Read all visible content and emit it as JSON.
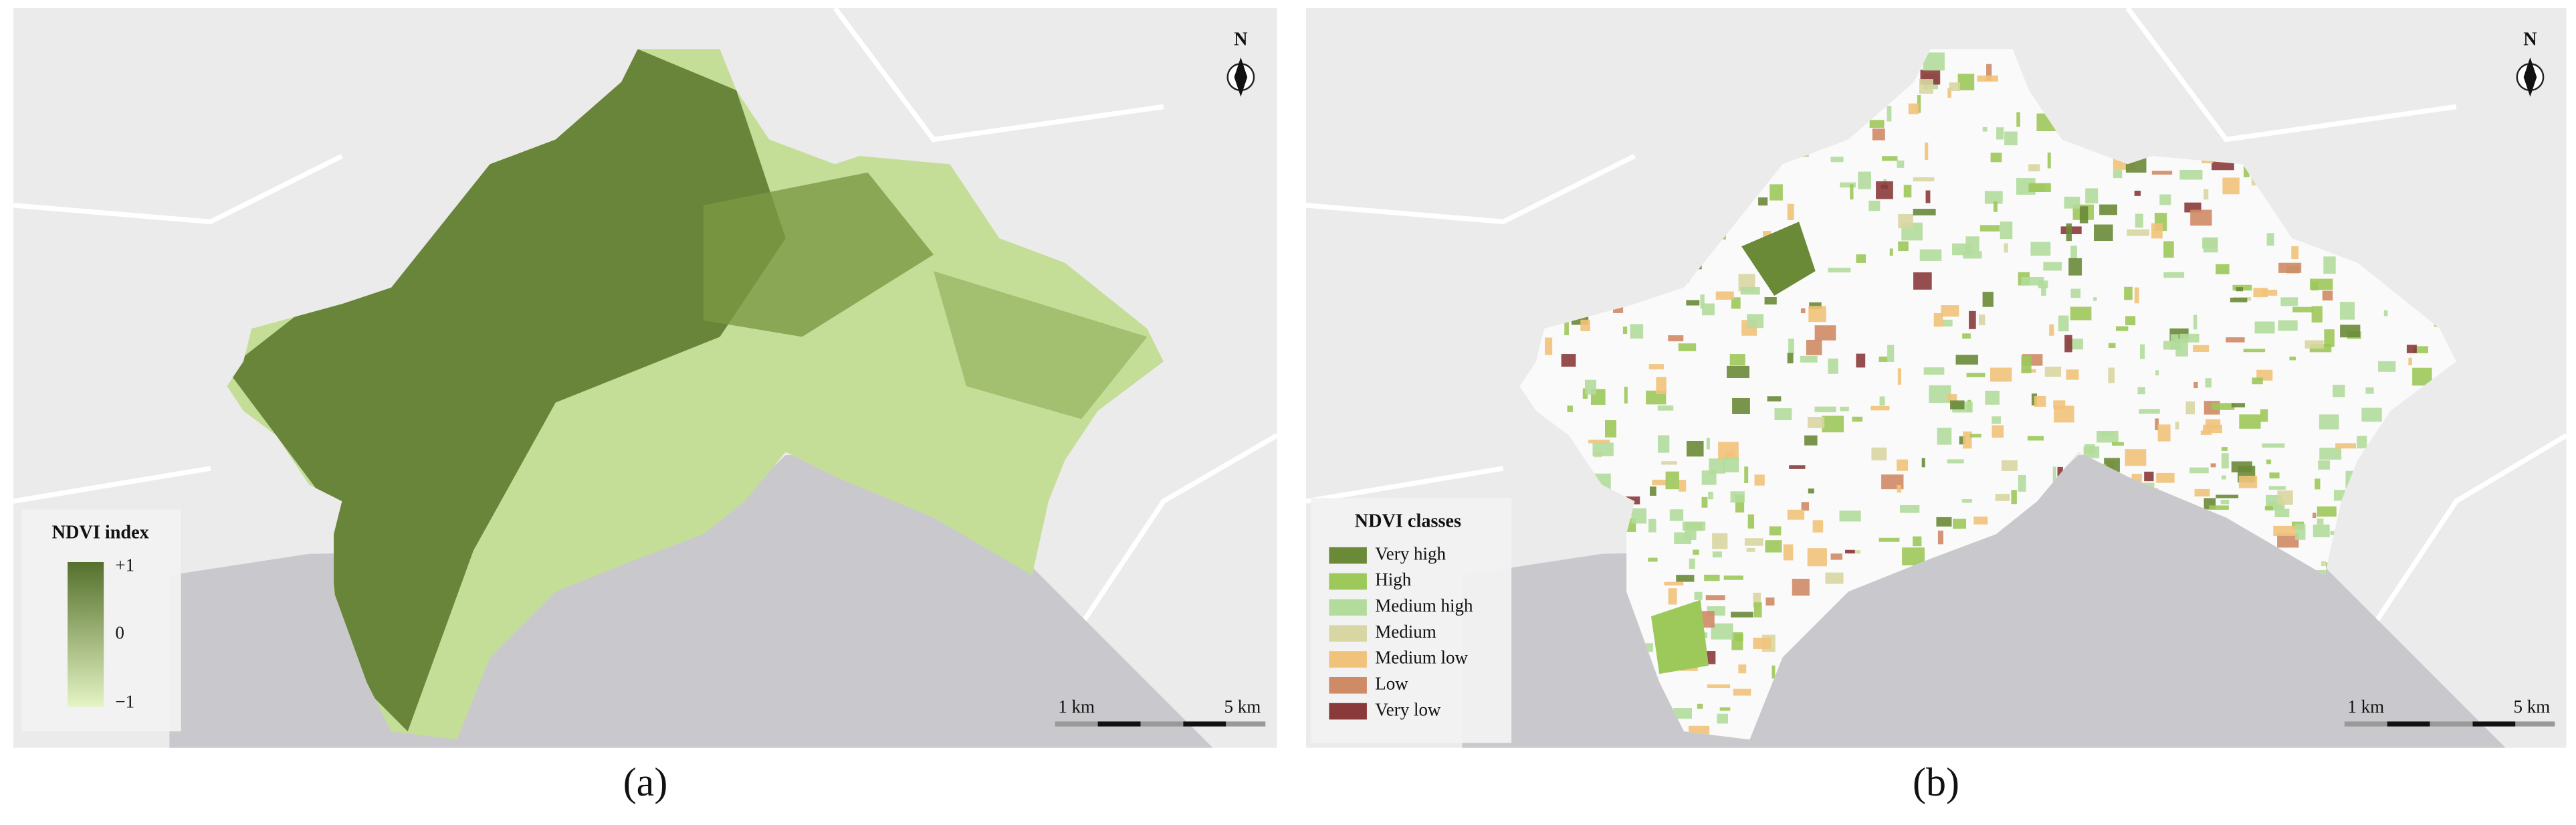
{
  "panels": [
    {
      "caption": "(a)",
      "north": "N",
      "legend": {
        "title": "NDVI index",
        "labels": [
          "+1",
          "0",
          "−1"
        ],
        "gradient": [
          "#55702b",
          "#e4f4c4"
        ]
      },
      "scale_bar": {
        "labels": [
          "1 km",
          "5 km"
        ]
      }
    },
    {
      "caption": "(b)",
      "north": "N",
      "legend": {
        "title": "NDVI classes",
        "classes": [
          {
            "label": "Very high",
            "color": "#6a8a38"
          },
          {
            "label": "High",
            "color": "#9dc85a"
          },
          {
            "label": "Medium high",
            "color": "#b3dc9c"
          },
          {
            "label": "Medium",
            "color": "#d8d6a2"
          },
          {
            "label": "Medium low",
            "color": "#f1c27a"
          },
          {
            "label": "Low",
            "color": "#cf8a66"
          },
          {
            "label": "Very low",
            "color": "#8a3a3a"
          }
        ]
      },
      "scale_bar": {
        "labels": [
          "1 km",
          "5 km"
        ]
      }
    }
  ]
}
